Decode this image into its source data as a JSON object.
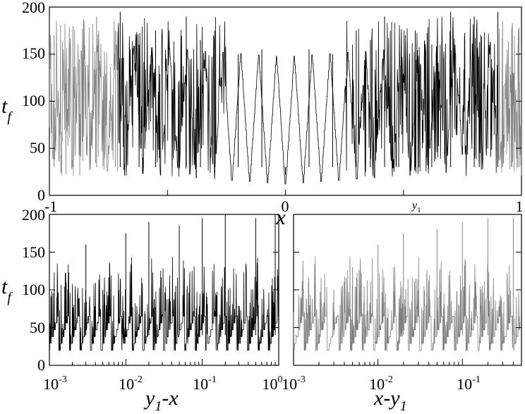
{
  "colors": {
    "dark_series": "#000000",
    "light_series": "#808080",
    "background": "#ffffff"
  },
  "chart_data": [
    {
      "type": "line",
      "title": "",
      "xlabel": "x",
      "ylabel": {
        "main": "t",
        "sub": "f"
      },
      "xlim": [
        -1,
        1
      ],
      "ylim": [
        0,
        200
      ],
      "x_tick_labels": [
        "-1",
        "0",
        "1"
      ],
      "y_tick_labels": [
        "0",
        "50",
        "100",
        "150",
        "200"
      ],
      "annotation": {
        "main": "y",
        "sub": "1",
        "x": 0.9
      },
      "grid": false,
      "series": [
        {
          "color": "#000000",
          "x_range": [
            -0.71,
            0.9
          ],
          "x": [
            -0.7,
            -0.62,
            -0.55,
            -0.48,
            -0.42,
            -0.36,
            -0.3,
            -0.2,
            -0.1,
            0.0,
            0.1,
            0.2,
            0.3,
            0.36,
            0.42,
            0.48,
            0.55,
            0.62,
            0.7,
            0.8,
            0.9
          ],
          "y": [
            195,
            160,
            175,
            110,
            190,
            165,
            175,
            150,
            155,
            22,
            155,
            150,
            175,
            165,
            190,
            110,
            175,
            160,
            195,
            190,
            195
          ]
        },
        {
          "color": "#808080",
          "x_range": [
            -1,
            -0.71
          ],
          "x": [
            -0.98,
            -0.9,
            -0.8,
            -0.72
          ],
          "y": [
            170,
            180,
            190,
            175
          ]
        },
        {
          "color": "#808080",
          "x_range": [
            0.9,
            1
          ],
          "x": [
            0.92,
            0.96,
            0.99
          ],
          "y": [
            185,
            180,
            178
          ]
        }
      ]
    },
    {
      "type": "line",
      "xlabel": {
        "main": "y",
        "sub": "1",
        "rest": "-x"
      },
      "ylabel": {
        "main": "t",
        "sub": "f"
      },
      "xscale": "log",
      "xlim": [
        0.001,
        1
      ],
      "ylim": [
        0,
        200
      ],
      "x_tick_labels": [
        {
          "base": "10",
          "exp": "-3"
        },
        {
          "base": "10",
          "exp": "-2"
        },
        {
          "base": "10",
          "exp": "-1"
        },
        {
          "base": "10",
          "exp": "0"
        }
      ],
      "y_tick_labels": [
        "0",
        "50",
        "100",
        "150",
        "200"
      ],
      "grid": false,
      "series": [
        {
          "color": "#000000",
          "x": [
            0.0015,
            0.003,
            0.005,
            0.01,
            0.02,
            0.05,
            0.1,
            0.2,
            0.5,
            0.9
          ],
          "y": [
            55,
            160,
            100,
            175,
            190,
            185,
            195,
            200,
            195,
            200
          ]
        }
      ]
    },
    {
      "type": "line",
      "xlabel": {
        "main": "x-y",
        "sub": "1"
      },
      "xscale": "log",
      "xlim": [
        0.001,
        0.5
      ],
      "ylim": [
        0,
        200
      ],
      "x_tick_labels": [
        {
          "base": "10",
          "exp": "-3"
        },
        {
          "base": "10",
          "exp": "-2"
        },
        {
          "base": "10",
          "exp": "-1"
        }
      ],
      "grid": false,
      "series": [
        {
          "color": "#808080",
          "x": [
            0.0015,
            0.003,
            0.005,
            0.01,
            0.02,
            0.05,
            0.1,
            0.2,
            0.4
          ],
          "y": [
            110,
            100,
            130,
            160,
            175,
            180,
            190,
            195,
            195
          ]
        }
      ]
    }
  ]
}
